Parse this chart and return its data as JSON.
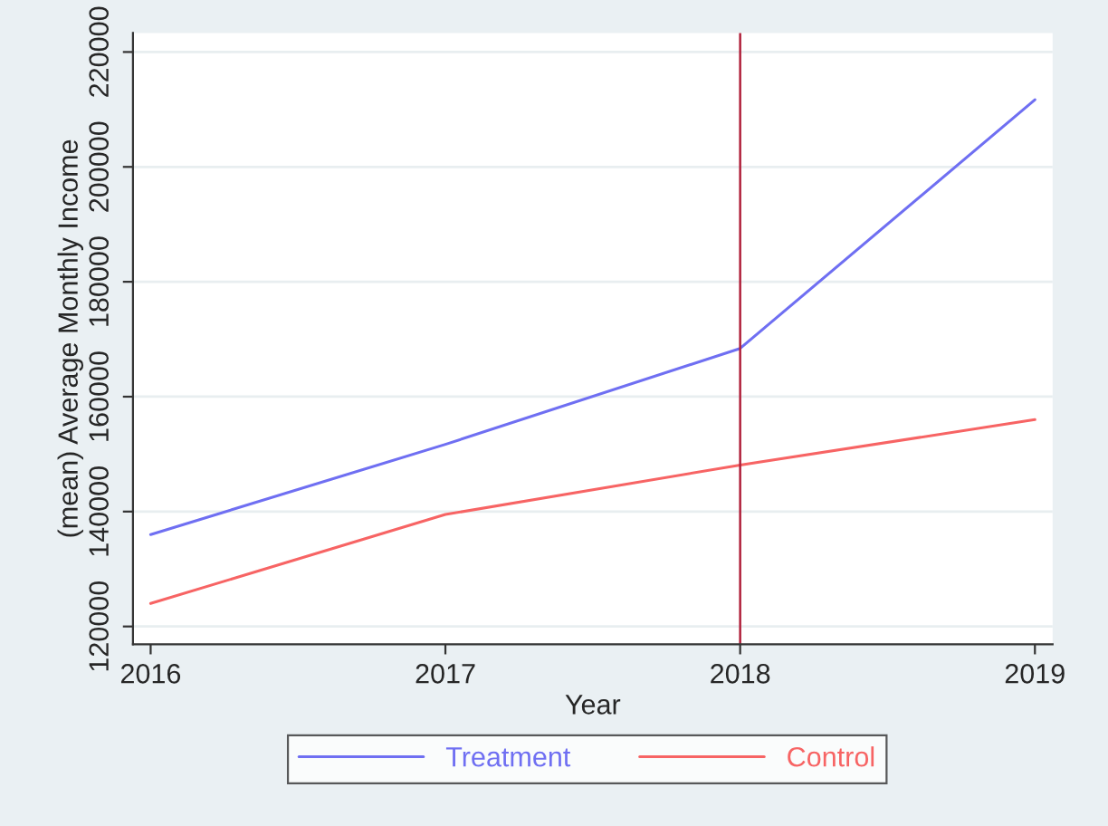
{
  "chart_data": {
    "type": "line",
    "xlabel": "Year",
    "ylabel": "(mean) Average Monthly Income",
    "x": [
      2016,
      2017,
      2018,
      2019
    ],
    "series": [
      {
        "name": "Treatment",
        "color": "#6f6ff2",
        "values": [
          136000,
          151700,
          168400,
          211700
        ]
      },
      {
        "name": "Control",
        "color": "#f76464",
        "values": [
          124000,
          139500,
          148100,
          156000
        ]
      }
    ],
    "xlim": [
      2015.94,
      2019.06
    ],
    "xticks": [
      2016,
      2017,
      2018,
      2019
    ],
    "ylim": [
      116900,
      223300
    ],
    "yticks": [
      120000,
      140000,
      160000,
      180000,
      200000,
      220000
    ],
    "ref_lines": [
      {
        "axis": "x",
        "value": 2018,
        "color": "#b0203a"
      }
    ],
    "grid": "y",
    "legend": "bottom",
    "line_style": "solid",
    "marker": "none"
  }
}
